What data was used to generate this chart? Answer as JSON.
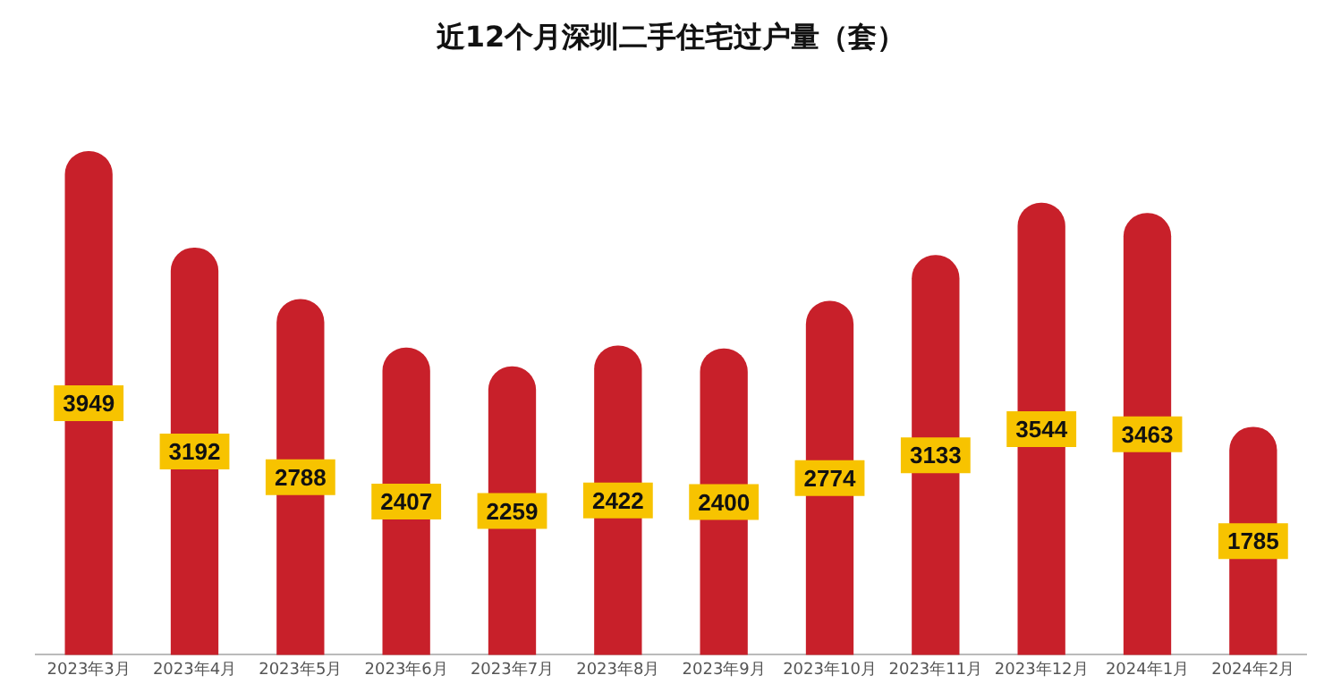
{
  "chart_data": {
    "type": "bar",
    "title": "近12个月深圳二手住宅过户量（套）",
    "categories": [
      "2023年3月",
      "2023年4月",
      "2023年5月",
      "2023年6月",
      "2023年7月",
      "2023年8月",
      "2023年9月",
      "2023年10月",
      "2023年11月",
      "2023年12月",
      "2024年1月",
      "2024年2月"
    ],
    "values": [
      3949,
      3192,
      2788,
      2407,
      2259,
      2422,
      2400,
      2774,
      3133,
      3544,
      3463,
      1785
    ],
    "color": "#c8202a",
    "data_labels": true,
    "grid": false,
    "legend": false,
    "tick_labels": "x"
  }
}
